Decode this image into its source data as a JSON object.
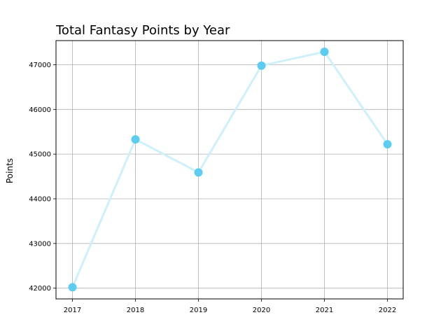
{
  "chart_data": {
    "type": "line",
    "title": "Total Fantasy Points by Year",
    "xlabel": "",
    "ylabel": "Points",
    "x": [
      "2017",
      "2018",
      "2019",
      "2020",
      "2021",
      "2022"
    ],
    "series": [
      {
        "values": [
          42020,
          45330,
          44590,
          46980,
          47290,
          45220
        ]
      }
    ],
    "ylim": [
      41760,
      47540
    ],
    "yticks": [
      42000,
      43000,
      44000,
      45000,
      46000,
      47000
    ],
    "grid": true,
    "line_color": "#cdf0fb",
    "marker_color": "#5ccdf0"
  }
}
